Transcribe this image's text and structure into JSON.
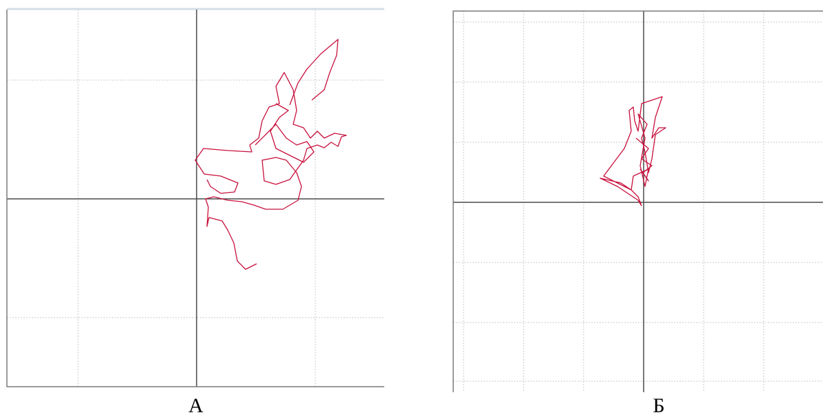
{
  "panels": [
    {
      "label": "А"
    },
    {
      "label": "Б"
    }
  ]
}
